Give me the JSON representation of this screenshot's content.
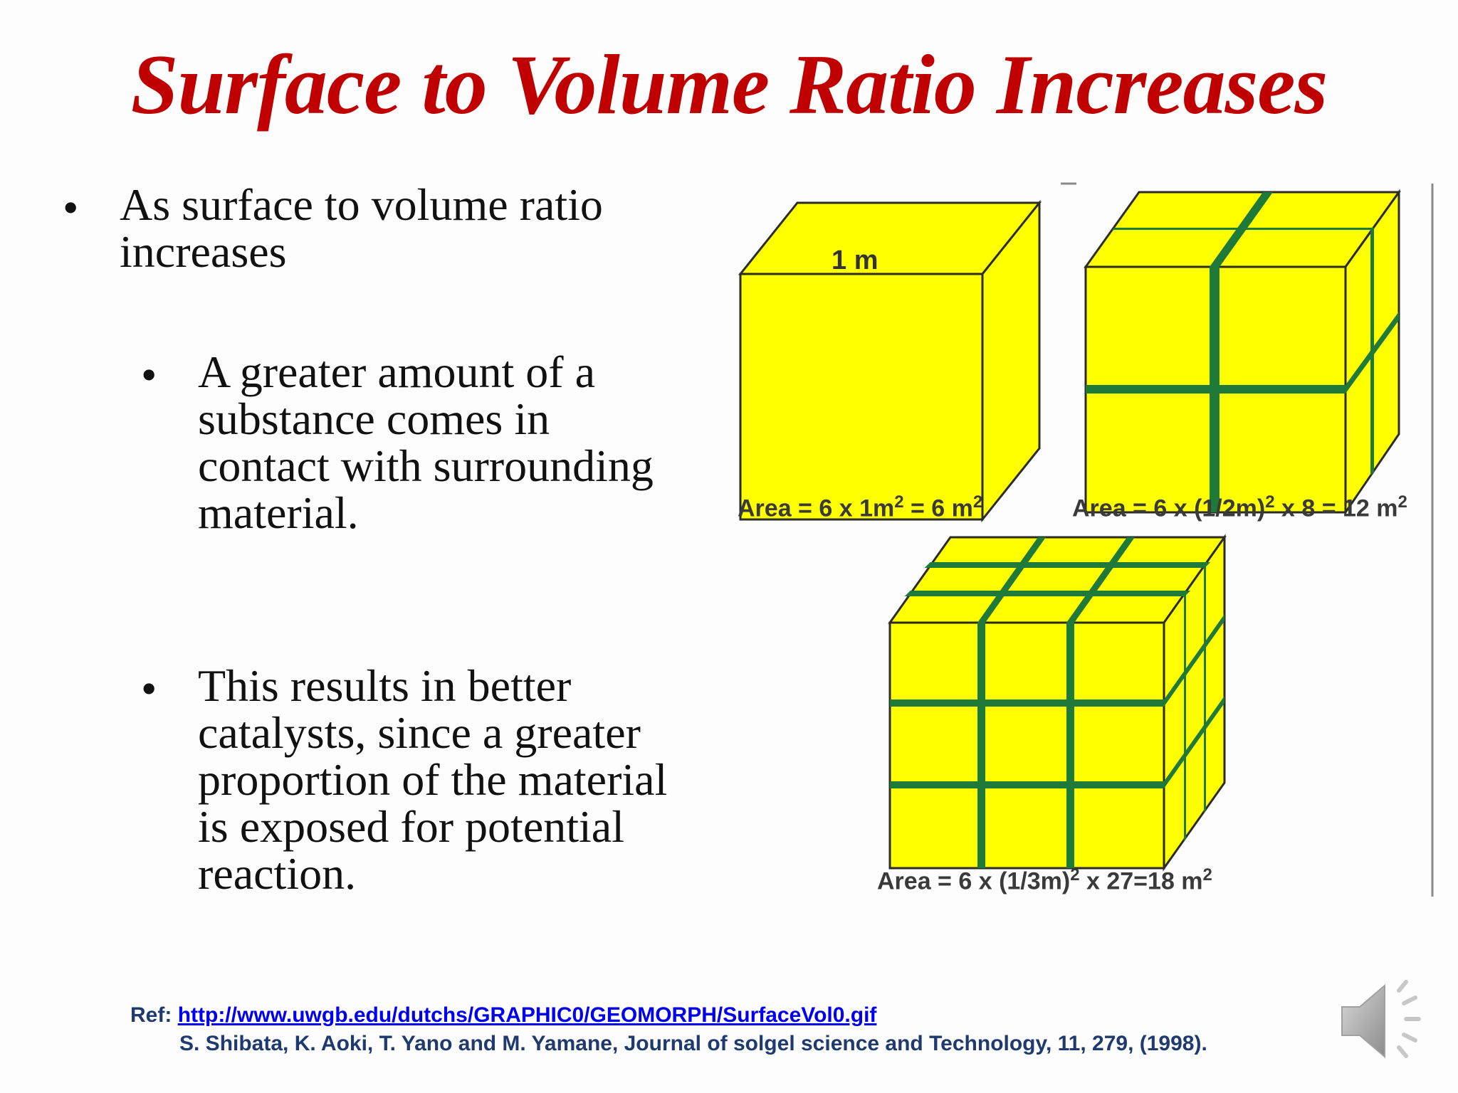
{
  "slide": {
    "title": "Surface to Volume Ratio Increases",
    "bullets": [
      "As surface to volume ratio increases",
      "A greater amount of a substance comes in contact with surrounding material.",
      "This results in better catalysts, since a greater proportion of the material is exposed for potential reaction."
    ]
  },
  "figure": {
    "dimension_label": "1 m",
    "areas": {
      "one": {
        "pre": "Area = 6 x 1m",
        "sup1": "2",
        "mid": " = 6 m",
        "sup2": "2"
      },
      "two": {
        "pre": "Area = 6 x (1/2m)",
        "sup1": "2",
        "mid": " x 8 = 12 m",
        "sup2": "2"
      },
      "three": {
        "pre": "Area = 6 x (1/3m)",
        "sup1": "2",
        "mid": " x 27=18 m",
        "sup2": "2"
      }
    },
    "colors": {
      "cube_face": "#ffff00",
      "cube_edge": "#2b2b2b",
      "gap": "#1f7a3a"
    }
  },
  "reference": {
    "label": "Ref:",
    "url": "http://www.uwgb.edu/dutchs/GRAPHIC0/GEOMORPH/SurfaceVol0.gif",
    "citation": "S. Shibata, K. Aoki, T. Yano and M. Yamane, Journal of solgel science and Technology, 11, 279, (1998)."
  },
  "audio": {
    "icon": "speaker-icon"
  }
}
